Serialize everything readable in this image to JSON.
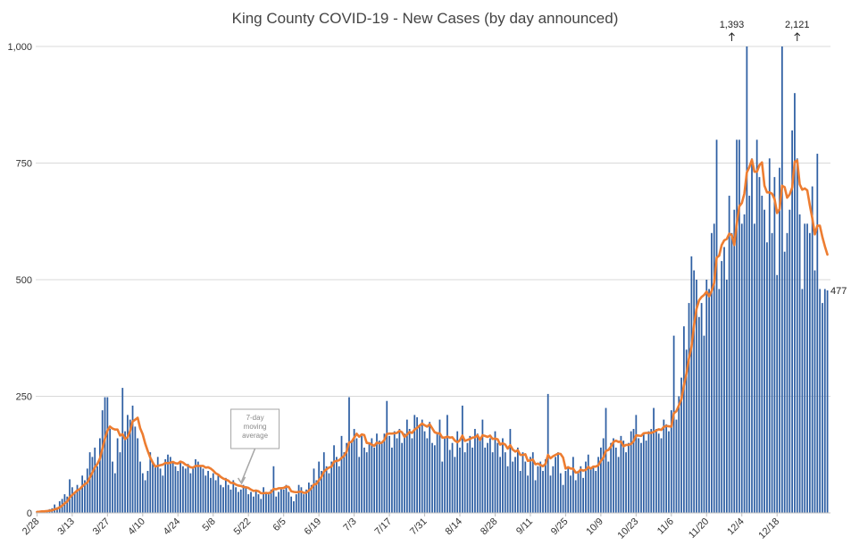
{
  "chart_data": {
    "type": "bar",
    "title": "King County COVID-19 - New Cases (by day announced)",
    "xlabel": "",
    "ylabel": "",
    "ylim": [
      0,
      1000
    ],
    "yticks": [
      0,
      250,
      500,
      750,
      1000
    ],
    "ytick_labels": [
      "0",
      "250",
      "500",
      "750",
      "1,000"
    ],
    "grid": true,
    "legend": "none",
    "start_date": "2/28",
    "xtick_labels": [
      "2/28",
      "3/13",
      "3/27",
      "4/10",
      "4/24",
      "5/8",
      "5/22",
      "6/5",
      "6/19",
      "7/3",
      "7/17",
      "7/31",
      "8/14",
      "8/28",
      "9/11",
      "9/25",
      "10/9",
      "10/23",
      "11/6",
      "11/20",
      "12/4",
      "12/18"
    ],
    "xtick_step_days": 14,
    "series": [
      {
        "name": "New cases",
        "kind": "bar",
        "color": "#2e5fa3",
        "values": [
          2,
          3,
          5,
          4,
          6,
          8,
          10,
          18,
          12,
          25,
          30,
          40,
          35,
          72,
          55,
          45,
          60,
          50,
          80,
          70,
          95,
          130,
          120,
          140,
          100,
          160,
          220,
          248,
          248,
          180,
          110,
          85,
          160,
          130,
          268,
          175,
          210,
          200,
          230,
          185,
          160,
          110,
          85,
          70,
          90,
          130,
          110,
          100,
          120,
          95,
          80,
          115,
          125,
          120,
          110,
          100,
          90,
          110,
          100,
          95,
          105,
          85,
          95,
          115,
          110,
          100,
          95,
          80,
          90,
          75,
          85,
          70,
          80,
          60,
          55,
          75,
          60,
          50,
          70,
          55,
          45,
          50,
          60,
          55,
          40,
          45,
          35,
          50,
          40,
          30,
          55,
          45,
          40,
          50,
          100,
          35,
          45,
          55,
          50,
          60,
          45,
          35,
          25,
          40,
          60,
          55,
          40,
          50,
          65,
          60,
          95,
          70,
          110,
          90,
          130,
          100,
          85,
          110,
          145,
          120,
          100,
          165,
          130,
          150,
          248,
          155,
          180,
          160,
          120,
          165,
          140,
          130,
          150,
          160,
          140,
          170,
          155,
          150,
          170,
          240,
          165,
          140,
          175,
          160,
          180,
          150,
          170,
          200,
          180,
          160,
          210,
          205,
          185,
          200,
          175,
          160,
          195,
          150,
          145,
          170,
          200,
          110,
          160,
          210,
          135,
          150,
          120,
          175,
          140,
          230,
          130,
          150,
          165,
          140,
          180,
          170,
          160,
          200,
          140,
          150,
          160,
          130,
          175,
          150,
          120,
          160,
          130,
          100,
          180,
          110,
          120,
          140,
          90,
          130,
          110,
          80,
          120,
          130,
          70,
          100,
          110,
          90,
          115,
          255,
          80,
          100,
          120,
          130,
          85,
          60,
          90,
          100,
          80,
          120,
          70,
          90,
          100,
          75,
          110,
          125,
          95,
          100,
          90,
          120,
          140,
          160,
          225,
          110,
          150,
          160,
          140,
          120,
          165,
          155,
          130,
          150,
          175,
          180,
          210,
          160,
          150,
          170,
          155,
          175,
          180,
          225,
          180,
          170,
          160,
          200,
          190,
          175,
          220,
          380,
          200,
          250,
          290,
          400,
          350,
          450,
          550,
          520,
          500,
          420,
          450,
          380,
          500,
          480,
          600,
          620,
          800,
          480,
          540,
          570,
          500,
          680,
          600,
          650,
          800,
          800,
          620,
          640,
          1000,
          680,
          760,
          620,
          800,
          720,
          680,
          650,
          580,
          760,
          600,
          720,
          510,
          740,
          1000,
          560,
          600,
          650,
          820,
          900,
          760,
          640,
          480,
          620,
          620,
          600,
          700,
          520,
          770,
          480,
          450,
          480,
          477
        ]
      },
      {
        "name": "7-day moving average",
        "kind": "line",
        "color": "#ed7d31"
      }
    ],
    "annotations": [
      {
        "label": "1,393",
        "arrow": "up",
        "category_index": 276
      },
      {
        "label": "2,121",
        "arrow": "up",
        "category_index": 302
      },
      {
        "label": "477",
        "position": "end-of-series"
      },
      {
        "label": "7-day moving average",
        "kind": "callout",
        "points_to_index": 82
      }
    ]
  }
}
